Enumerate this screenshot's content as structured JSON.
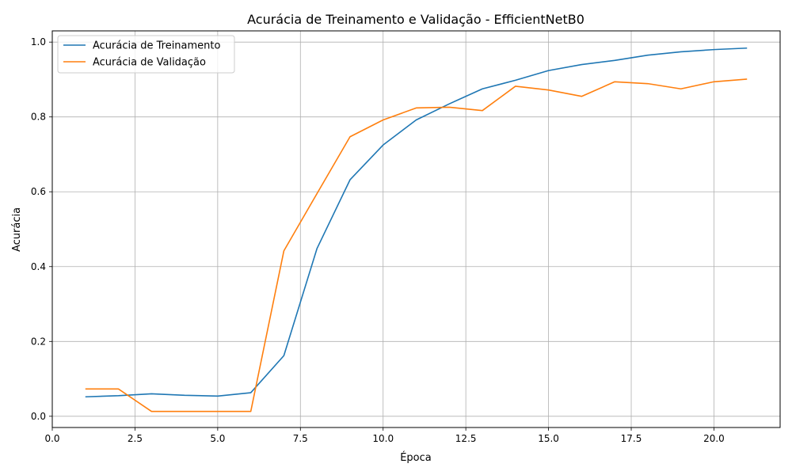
{
  "chart_data": {
    "type": "line",
    "title": "Acurácia de Treinamento e Validação - EfficientNetB0",
    "xlabel": "Época",
    "ylabel": "Acurácia",
    "xlim": [
      0,
      22
    ],
    "ylim": [
      -0.03,
      1.03
    ],
    "xticks": [
      "0.0",
      "2.5",
      "5.0",
      "7.5",
      "10.0",
      "12.5",
      "15.0",
      "17.5",
      "20.0"
    ],
    "yticks": [
      "0.0",
      "0.2",
      "0.4",
      "0.6",
      "0.8",
      "1.0"
    ],
    "grid": true,
    "legend_position": "upper-left",
    "x": [
      1,
      2,
      3,
      4,
      5,
      6,
      7,
      8,
      9,
      10,
      11,
      12,
      13,
      14,
      15,
      16,
      17,
      18,
      19,
      20,
      21
    ],
    "series": [
      {
        "name": "Acurácia de Treinamento",
        "color": "#1f77b4",
        "values": [
          0.052,
          0.055,
          0.06,
          0.056,
          0.054,
          0.063,
          0.162,
          0.448,
          0.632,
          0.725,
          0.792,
          0.835,
          0.875,
          0.898,
          0.924,
          0.94,
          0.951,
          0.965,
          0.974,
          0.98,
          0.984
        ]
      },
      {
        "name": "Acurácia de Validação",
        "color": "#ff7f0e",
        "values": [
          0.073,
          0.073,
          0.013,
          0.013,
          0.013,
          0.013,
          0.442,
          0.595,
          0.747,
          0.792,
          0.824,
          0.826,
          0.817,
          0.882,
          0.872,
          0.855,
          0.894,
          0.889,
          0.875,
          0.894,
          0.901
        ]
      }
    ]
  }
}
